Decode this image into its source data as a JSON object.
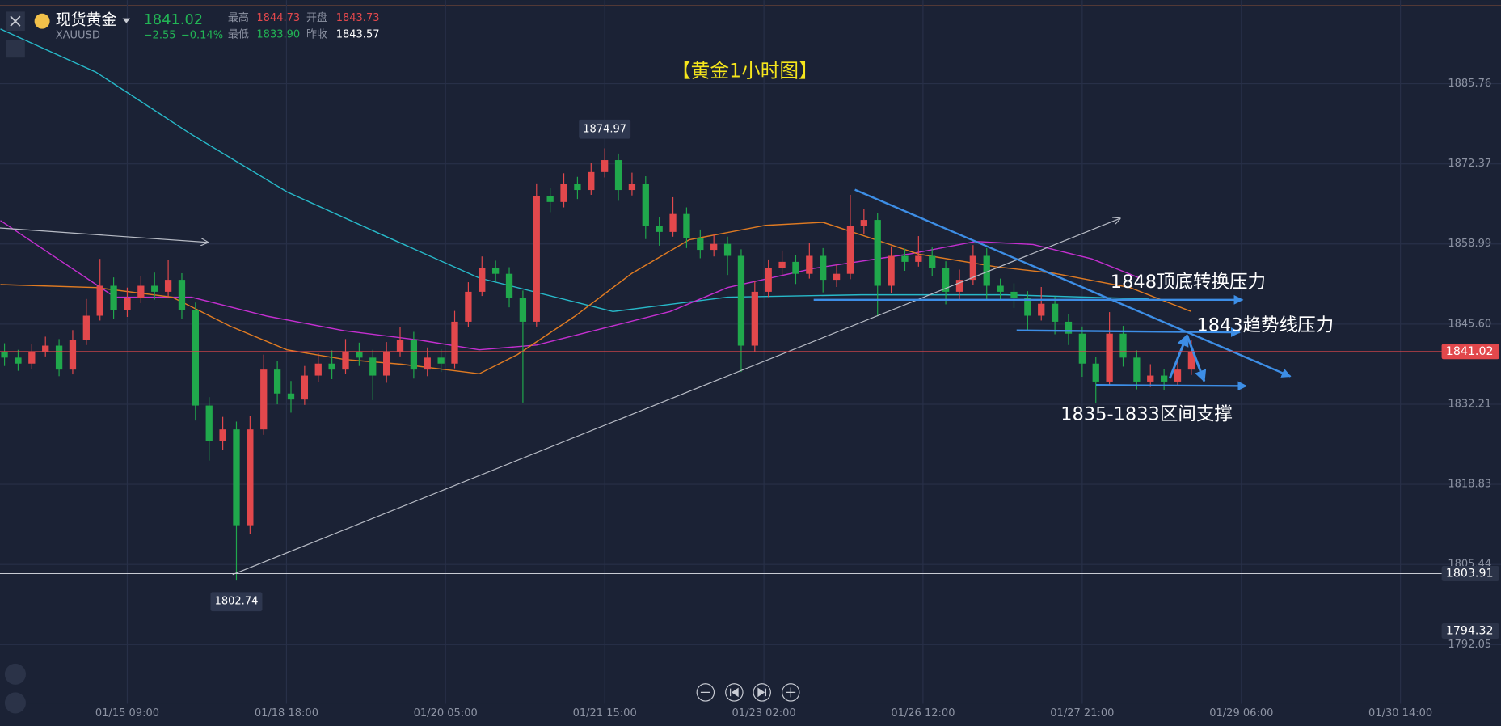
{
  "header": {
    "name": "现货黄金",
    "symbol": "XAUUSD",
    "price": "1841.02",
    "change": "−2.55",
    "change_pct": "−0.14%",
    "stats": [
      {
        "label": "最高",
        "value": "1844.73"
      },
      {
        "label": "开盘",
        "value": "1843.73"
      },
      {
        "label": "最低",
        "value": "1833.90"
      },
      {
        "label": "昨收",
        "value": "1843.57"
      }
    ]
  },
  "chart_data": {
    "type": "candlestick",
    "title": "【黄金1小时图】",
    "up_color": "#e2484c",
    "down_color": "#20a84c",
    "xlim": [
      -0.33,
      109.7
    ],
    "ylim": [
      1782.15,
      1899.73
    ],
    "xticks": [
      {
        "value": 9,
        "label": "01/15 09:00"
      },
      {
        "value": 20.67,
        "label": "01/18 18:00"
      },
      {
        "value": 32.33,
        "label": "01/20 05:00"
      },
      {
        "value": 44,
        "label": "01/21 15:00"
      },
      {
        "value": 55.67,
        "label": "01/23 02:00"
      },
      {
        "value": 67.33,
        "label": "01/26 12:00"
      },
      {
        "value": 79,
        "label": "01/27 21:00"
      },
      {
        "value": 90.67,
        "label": "01/29 06:00"
      },
      {
        "value": 102.33,
        "label": "01/30 14:00"
      }
    ],
    "yticks": [
      1885.76,
      1872.37,
      1858.99,
      {
        "value": 1845.6,
        "label": "1845.60"
      },
      1832.21,
      1818.83,
      1805.44,
      1792.05
    ],
    "grid": true,
    "ohlc": [
      [
        1841,
        1842.4,
        1838.6,
        1840
      ],
      [
        1840,
        1841.3,
        1837.8,
        1839
      ],
      [
        1839,
        1842.2,
        1838.1,
        1841
      ],
      [
        1841,
        1843.5,
        1840.2,
        1842
      ],
      [
        1842,
        1843.1,
        1836.9,
        1838
      ],
      [
        1838,
        1844.6,
        1837.2,
        1843
      ],
      [
        1843,
        1849.8,
        1842.1,
        1847
      ],
      [
        1847,
        1856.5,
        1846.2,
        1852
      ],
      [
        1852,
        1853.4,
        1846.5,
        1848
      ],
      [
        1848,
        1851.7,
        1846.8,
        1850
      ],
      [
        1850,
        1853.6,
        1849.1,
        1852
      ],
      [
        1852,
        1854.2,
        1849.7,
        1851
      ],
      [
        1851,
        1856.3,
        1850.2,
        1853
      ],
      [
        1853,
        1854.1,
        1846.4,
        1848
      ],
      [
        1848,
        1849.2,
        1829.5,
        1832
      ],
      [
        1832,
        1833.4,
        1822.8,
        1826
      ],
      [
        1826,
        1830.1,
        1824.6,
        1828
      ],
      [
        1828,
        1829.3,
        1802.74,
        1812
      ],
      [
        1812,
        1830.2,
        1810.6,
        1828
      ],
      [
        1828,
        1840.5,
        1827.1,
        1838
      ],
      [
        1838,
        1839.4,
        1832.2,
        1834
      ],
      [
        1834,
        1836.1,
        1830.8,
        1833
      ],
      [
        1833,
        1838.6,
        1832.1,
        1837
      ],
      [
        1837,
        1840.7,
        1835.9,
        1839
      ],
      [
        1839,
        1841.2,
        1836.4,
        1838
      ],
      [
        1838,
        1843.1,
        1837.3,
        1841
      ],
      [
        1841,
        1842.5,
        1838.6,
        1840
      ],
      [
        1840,
        1841.3,
        1832.9,
        1837
      ],
      [
        1837,
        1842.6,
        1835.8,
        1841
      ],
      [
        1841,
        1845.1,
        1840.2,
        1843
      ],
      [
        1843,
        1844.3,
        1836.5,
        1838
      ],
      [
        1838,
        1841.7,
        1836.9,
        1840
      ],
      [
        1840,
        1841.4,
        1837.6,
        1839
      ],
      [
        1839,
        1847.8,
        1838.2,
        1846
      ],
      [
        1846,
        1852.6,
        1845.1,
        1851
      ],
      [
        1851,
        1856.9,
        1850.3,
        1855
      ],
      [
        1855,
        1856.2,
        1852.7,
        1854
      ],
      [
        1854,
        1855.1,
        1848.4,
        1850
      ],
      [
        1850,
        1851.2,
        1832.5,
        1846
      ],
      [
        1846,
        1869.1,
        1845.2,
        1867
      ],
      [
        1867,
        1868.4,
        1864.3,
        1866
      ],
      [
        1866,
        1870.8,
        1865.1,
        1869
      ],
      [
        1869,
        1870.2,
        1866.5,
        1868
      ],
      [
        1868,
        1872.6,
        1867.2,
        1871
      ],
      [
        1871,
        1874.97,
        1870.1,
        1873
      ],
      [
        1873,
        1874.1,
        1866.2,
        1868
      ],
      [
        1868,
        1870.9,
        1867.1,
        1869
      ],
      [
        1869,
        1870.3,
        1859.8,
        1862
      ],
      [
        1862,
        1863.5,
        1858.7,
        1861
      ],
      [
        1861,
        1866.8,
        1860.2,
        1864
      ],
      [
        1864,
        1865.1,
        1858.3,
        1860
      ],
      [
        1860,
        1861.4,
        1856.6,
        1858
      ],
      [
        1858,
        1860.7,
        1856.9,
        1859
      ],
      [
        1859,
        1860.2,
        1853.8,
        1857
      ],
      [
        1857,
        1858.1,
        1837.6,
        1842
      ],
      [
        1842,
        1852.8,
        1840.9,
        1851
      ],
      [
        1851,
        1856.4,
        1850.1,
        1855
      ],
      [
        1855,
        1857.9,
        1853.6,
        1856
      ],
      [
        1856,
        1857.2,
        1852.3,
        1854
      ],
      [
        1854,
        1859.1,
        1853.2,
        1857
      ],
      [
        1857,
        1858.3,
        1850.9,
        1853
      ],
      [
        1853,
        1855.7,
        1851.8,
        1854
      ],
      [
        1854,
        1867.2,
        1853.1,
        1862
      ],
      [
        1862,
        1864.8,
        1860.6,
        1863
      ],
      [
        1863,
        1864.1,
        1846.9,
        1852
      ],
      [
        1852,
        1858.6,
        1850.8,
        1857
      ],
      [
        1857,
        1858.2,
        1854.5,
        1856
      ],
      [
        1856,
        1860.3,
        1855.2,
        1857
      ],
      [
        1857,
        1858.4,
        1853.6,
        1855
      ],
      [
        1855,
        1856.1,
        1848.9,
        1851
      ],
      [
        1851,
        1854.7,
        1849.6,
        1853
      ],
      [
        1853,
        1858.8,
        1852.1,
        1857
      ],
      [
        1857,
        1858.3,
        1849.7,
        1852
      ],
      [
        1852,
        1853.2,
        1849.5,
        1851
      ],
      [
        1851,
        1852.4,
        1848.3,
        1850
      ],
      [
        1850,
        1851.1,
        1844.6,
        1847
      ],
      [
        1847,
        1851.8,
        1846.2,
        1849
      ],
      [
        1849,
        1850.2,
        1843.9,
        1846
      ],
      [
        1846,
        1847.3,
        1842.1,
        1844
      ],
      [
        1844,
        1845.2,
        1836.8,
        1839
      ],
      [
        1839,
        1840.1,
        1832.4,
        1836
      ],
      [
        1836,
        1847.6,
        1835.2,
        1844
      ],
      [
        1844,
        1845.3,
        1838.5,
        1840
      ],
      [
        1840,
        1841.2,
        1834.7,
        1836
      ],
      [
        1836,
        1838.9,
        1835.1,
        1837
      ],
      [
        1837,
        1838.1,
        1834.6,
        1836
      ],
      [
        1836,
        1839.2,
        1835.3,
        1838
      ],
      [
        1838,
        1842.9,
        1837.1,
        1841
      ]
    ],
    "lines": [
      {
        "color": "#27b9c9",
        "x": [
          -0.3,
          6.7,
          13.7,
          20.7,
          27.7,
          34.8,
          44.6,
          53,
          62.8,
          73.4,
          83.9
        ],
        "values": [
          1894.9,
          1887.7,
          1877.3,
          1867.7,
          1860.5,
          1853.3,
          1847.7,
          1850.1,
          1850.5,
          1850.5,
          1849.8
        ]
      },
      {
        "color": "#c42fd0",
        "x": [
          -0.3,
          3.9,
          8.1,
          13.7,
          19.3,
          24.9,
          30.5,
          34.8,
          39,
          44.6,
          48.8,
          53,
          59.3,
          66.3,
          71.2,
          75.4,
          79.7,
          83.2
        ],
        "values": [
          1862.9,
          1856.5,
          1850.1,
          1850.1,
          1846.9,
          1844.5,
          1842.9,
          1841.3,
          1842.1,
          1845.3,
          1847.7,
          1851.7,
          1854.9,
          1857.3,
          1859.4,
          1858.9,
          1856.5,
          1853.3
        ]
      },
      {
        "color": "#e07b22",
        "x": [
          -0.3,
          6.7,
          12.3,
          16.5,
          20.7,
          24.9,
          29.1,
          34.8,
          37.6,
          41.8,
          46,
          50.2,
          55.8,
          60,
          62.8,
          67,
          72.6,
          76.9,
          82.5,
          87
        ],
        "values": [
          1852.2,
          1851.7,
          1850.1,
          1845.3,
          1841.3,
          1839.7,
          1838.9,
          1837.3,
          1840.5,
          1846.9,
          1854.1,
          1859.7,
          1862.1,
          1862.6,
          1860.5,
          1857.3,
          1855.2,
          1854.1,
          1851.7,
          1847.7
        ]
      }
    ],
    "price_lines": [
      {
        "value": 1841.02,
        "color": "#e2484c",
        "dashed": false
      },
      {
        "value": 1803.91,
        "color": "#c9ccd4",
        "dashed": false
      },
      {
        "value": 1794.32,
        "color": "#7d8394",
        "dashed": true
      }
    ],
    "extremes": [
      {
        "x": 44,
        "value": 1874.97,
        "side": "top"
      },
      {
        "x": 17,
        "value": 1802.74,
        "side": "bottom"
      }
    ],
    "annotations": [
      "1848顶底转换压力",
      "1843趋势线压力",
      "1835-1833区间支撑"
    ]
  }
}
